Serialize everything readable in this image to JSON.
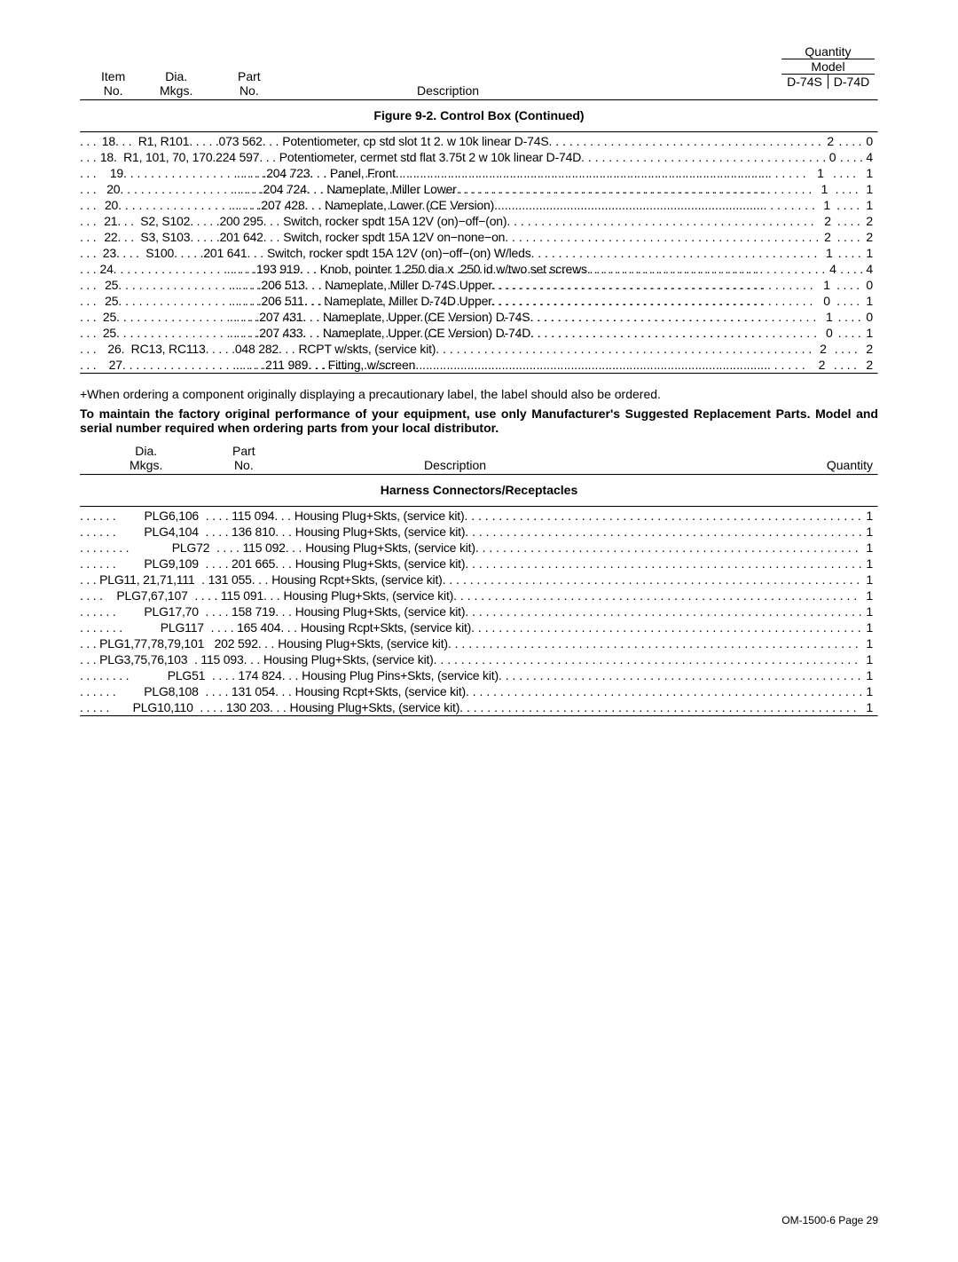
{
  "header1": {
    "item": "Item\nNo.",
    "dia": "Dia.\nMkgs.",
    "part": "Part\nNo.",
    "desc": "Description",
    "qty": "Quantity",
    "model": "Model",
    "m1": "D-74S",
    "m2": "D-74D"
  },
  "fig_title": "Figure 9-2. Control Box (Continued)",
  "rows1": [
    {
      "item": "18",
      "dia": "R1, R101",
      "part": "073 562",
      "desc": "Potentiometer, cp std slot 1t 2. w 10k linear D-74S",
      "q1": "2",
      "q2": "0"
    },
    {
      "item": "18",
      "dia": "R1, 101, 70, 170",
      "part": "224 597",
      "desc": "Potentiometer, cermet std flat 3.75t 2 w 10k linear D-74D",
      "q1": "0",
      "q2": "4",
      "diadot": "."
    },
    {
      "item": "19",
      "dia": "",
      "part": "204 723",
      "desc": "Panel, Front",
      "q1": "1",
      "q2": "1"
    },
    {
      "item": "20",
      "dia": "",
      "part": "204 724",
      "desc": "Nameplate, Miller Lower",
      "q1": "1",
      "q2": "1"
    },
    {
      "item": "20",
      "dia": "",
      "part": "207 428",
      "desc": "Nameplate, Lower (CE Version)",
      "q1": "1",
      "q2": "1"
    },
    {
      "item": "21",
      "dia": "S2, S102",
      "part": "200 295",
      "desc": "Switch, rocker spdt 15A 12V (on)−off−(on)",
      "q1": "2",
      "q2": "2"
    },
    {
      "item": "22",
      "dia": "S3, S103",
      "part": "201 642",
      "desc": "Switch, rocker spdt 15A 12V on−none−on",
      "q1": "2",
      "q2": "2"
    },
    {
      "item": "23",
      "dia": "S100",
      "part": "201 641",
      "desc": "Switch, rocker spdt 15A 12V (on)−off−(on) W/leds",
      "q1": "1",
      "q2": "1"
    },
    {
      "item": "24",
      "dia": "",
      "part": "193 919",
      "desc": "Knob, pointer 1.250 dia x .250 id w/two set screws",
      "q1": "4",
      "q2": "4"
    },
    {
      "item": "25",
      "dia": "",
      "part": "206 513",
      "desc": "Nameplate, Miller D-74S Upper",
      "q1": "1",
      "q2": "0"
    },
    {
      "item": "25",
      "dia": "",
      "part": "206 511",
      "desc": "Nameplate, Miller D-74D Upper",
      "q1": "0",
      "q2": "1"
    },
    {
      "item": "25",
      "dia": "",
      "part": "207 431",
      "desc": "Nameplate, Upper (CE Version) D-74S",
      "q1": "1",
      "q2": "0"
    },
    {
      "item": "25",
      "dia": "",
      "part": "207 433",
      "desc": "Nameplate, Upper (CE Version) D-74D",
      "q1": "0",
      "q2": "1"
    },
    {
      "item": "26",
      "dia": "RC13, RC113",
      "part": "048 282",
      "desc": "RCPT w/skts, (service kit)",
      "q1": "2",
      "q2": "2"
    },
    {
      "item": "27",
      "dia": "",
      "part": "211 989",
      "desc": "Fitting, w/screen",
      "q1": "2",
      "q2": "2"
    }
  ],
  "note_plus": "+When ordering a component originally displaying a precautionary label, the label should also be ordered.",
  "note_bold": "To maintain the factory original performance of your equipment, use only Manufacturer's Suggested Replacement Parts. Model and serial number required when ordering parts from your local distributor.",
  "header2": {
    "dia": "Dia.\nMkgs.",
    "part": "Part\nNo.",
    "desc": "Description",
    "qty": "Quantity"
  },
  "sect2_title": "Harness Connectors/Receptacles",
  "rows2": [
    {
      "dia": "PLG6,106",
      "part": "115 094",
      "desc": "Housing Plug+Skts, (service kit)",
      "qty": "1"
    },
    {
      "dia": "PLG4,104",
      "part": "136 810",
      "desc": "Housing Plug+Skts, (service kit)",
      "qty": "1"
    },
    {
      "dia": "PLG72",
      "part": "115 092",
      "desc": "Housing Plug+Skts, (service kit)",
      "qty": "1"
    },
    {
      "dia": "PLG9,109",
      "part": "201 665",
      "desc": "Housing Plug+Skts, (service kit)",
      "qty": "1"
    },
    {
      "dia": "PLG11, 21,71,111",
      "part": "131 055",
      "desc": "Housing Rcpt+Skts, (service kit)",
      "qty": "1",
      "diadot": "."
    },
    {
      "dia": "PLG7,67,107",
      "part": "115 091",
      "desc": "Housing Plug+Skts, (service kit)",
      "qty": "1"
    },
    {
      "dia": "PLG17,70",
      "part": "158 719",
      "desc": "Housing Plug+Skts, (service kit)",
      "qty": "1"
    },
    {
      "dia": "PLG117",
      "part": "165 404",
      "desc": "Housing Rcpt+Skts, (service kit)",
      "qty": "1"
    },
    {
      "dia": "PLG1,77,78,79,101",
      "part": "202 592",
      "desc": "Housing Plug+Skts, (service kit)",
      "qty": "1",
      "nodot": true
    },
    {
      "dia": "PLG3,75,76,103",
      "part": "115 093",
      "desc": "Housing Plug+Skts, (service kit)",
      "qty": "1",
      "diadot": "."
    },
    {
      "dia": "PLG51",
      "part": "174 824",
      "desc": "Housing Plug Pins+Skts, (service kit)",
      "qty": "1"
    },
    {
      "dia": "PLG8,108",
      "part": "131 054",
      "desc": "Housing Rcpt+Skts, (service kit)",
      "qty": "1"
    },
    {
      "dia": "PLG10,110",
      "part": "130 203",
      "desc": "Housing Plug+Skts, (service kit)",
      "qty": "1"
    }
  ],
  "footer": "OM-1500-6 Page 29"
}
